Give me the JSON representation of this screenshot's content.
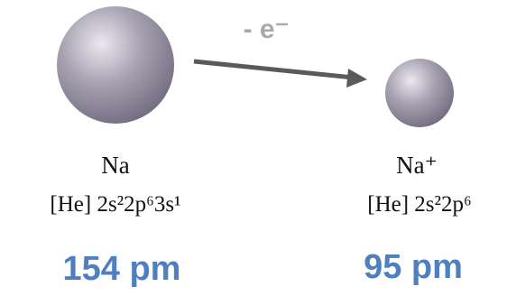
{
  "electron_loss": "- e⁻",
  "atoms": [
    {
      "symbol": "Na",
      "configuration": "[He] 2s²2p⁶3s¹",
      "radius": "154 pm"
    },
    {
      "symbol": "Na⁺",
      "configuration": "[He] 2s²2p⁶",
      "radius": "95 pm"
    }
  ]
}
